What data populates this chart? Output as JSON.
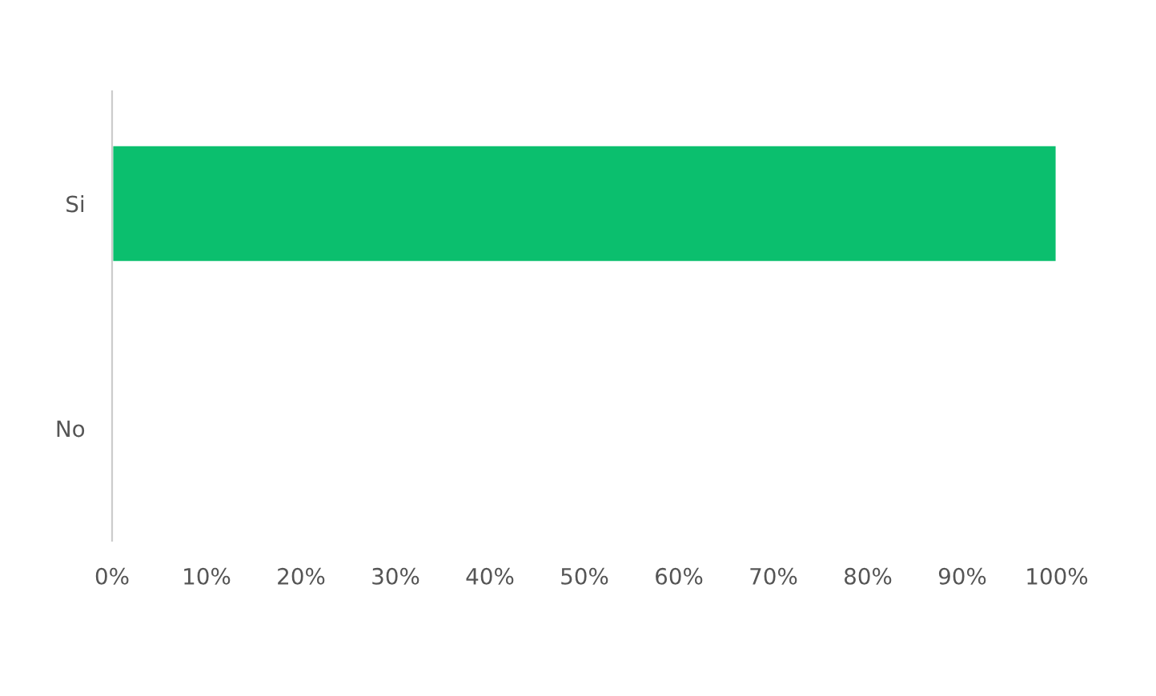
{
  "chart_data": {
    "type": "bar",
    "orientation": "horizontal",
    "categories": [
      "Si",
      "No"
    ],
    "series": [
      {
        "color": "#0bbf6e",
        "values": [
          100,
          0
        ]
      }
    ],
    "xlim": [
      0,
      100
    ],
    "xticks": [
      {
        "value": 0,
        "label": "0%"
      },
      {
        "value": 10,
        "label": "10%"
      },
      {
        "value": 20,
        "label": "20%"
      },
      {
        "value": 30,
        "label": "30%"
      },
      {
        "value": 40,
        "label": "40%"
      },
      {
        "value": 50,
        "label": "50%"
      },
      {
        "value": 60,
        "label": "60%"
      },
      {
        "value": 70,
        "label": "70%"
      },
      {
        "value": 80,
        "label": "80%"
      },
      {
        "value": 90,
        "label": "90%"
      },
      {
        "value": 100,
        "label": "100%"
      }
    ],
    "grid": false,
    "legend": false
  }
}
